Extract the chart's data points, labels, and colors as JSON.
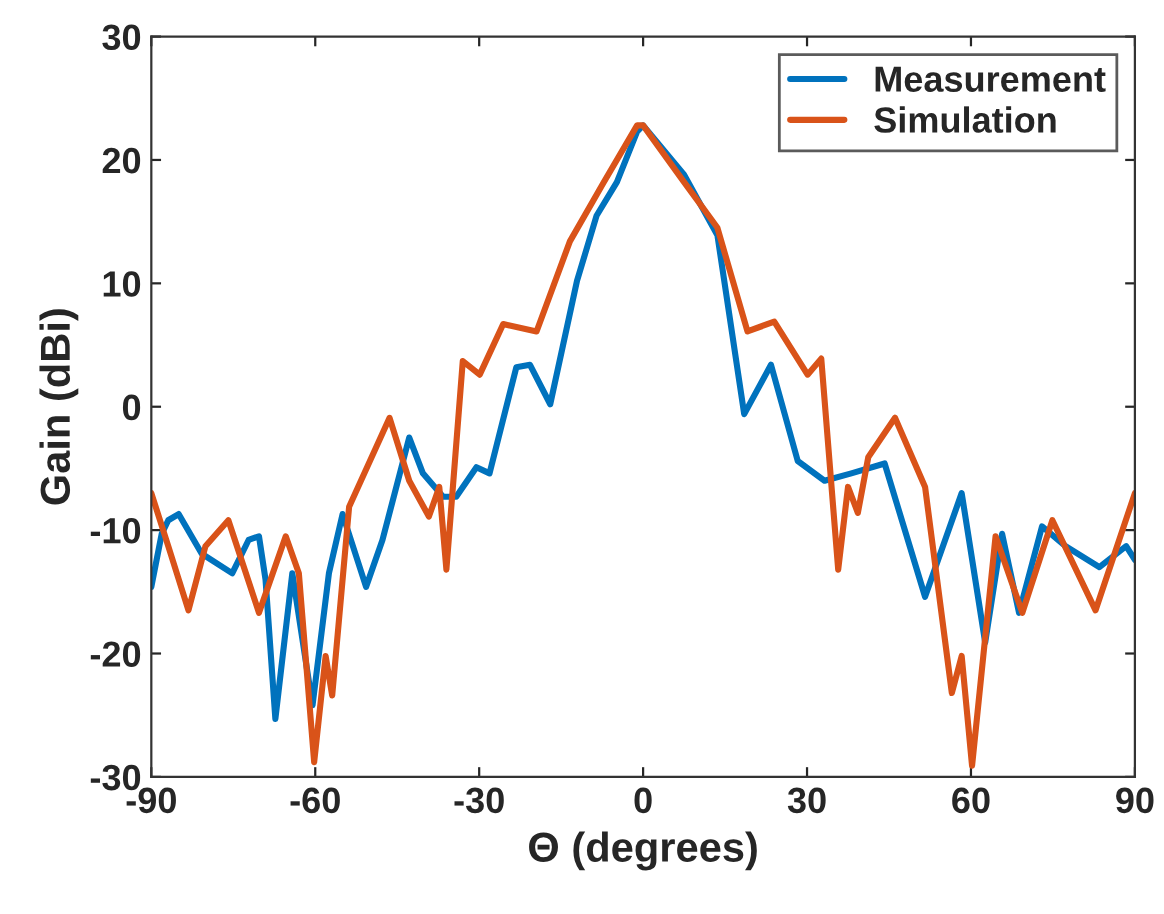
{
  "chart_data": {
    "type": "line",
    "xlabel": "Θ (degrees)",
    "ylabel": "Gain (dBi)",
    "xlim": [
      -90,
      90
    ],
    "xticks": [
      -90,
      -60,
      -30,
      0,
      30,
      60,
      90
    ],
    "ylim": [
      -30,
      30
    ],
    "yticks": [
      -30,
      -20,
      -10,
      0,
      10,
      20,
      30
    ],
    "grid": false,
    "legend": "top right",
    "line_style": "solid",
    "marker": "none",
    "series": [
      {
        "name": "Measurement",
        "color": "#0072bd",
        "x": [
          -90,
          -88.1,
          -86.9,
          -85,
          -80.8,
          -75.2,
          -72.2,
          -70.3,
          -69.1,
          -67.3,
          -64.2,
          -60.5,
          -57.5,
          -55,
          -50.7,
          -47.7,
          -42.8,
          -40.3,
          -36.6,
          -34.2,
          -30.5,
          -28.1,
          -23.2,
          -20.7,
          -17,
          -12.1,
          -8.5,
          -4.8,
          -1.1,
          0,
          7.5,
          13.6,
          18.5,
          23.4,
          28.3,
          33.2,
          38.1,
          44.2,
          51.6,
          58.3,
          62.6,
          65.7,
          68.8,
          73,
          77.3,
          83.5,
          88.4,
          90
        ],
        "values": [
          -14.6,
          -10.3,
          -9.2,
          -8.7,
          -11.9,
          -13.5,
          -10.8,
          -10.5,
          -14,
          -25.3,
          -13.5,
          -24.2,
          -13.5,
          -8.7,
          -14.6,
          -10.8,
          -2.5,
          -5.4,
          -7.3,
          -7.3,
          -4.9,
          -5.4,
          3.2,
          3.4,
          0.2,
          10.2,
          15.5,
          18.2,
          22.3,
          22.8,
          18.8,
          13.9,
          -0.6,
          3.4,
          -4.4,
          -6,
          -5.4,
          -4.6,
          -15.4,
          -7,
          -19.1,
          -10.3,
          -16.7,
          -9.7,
          -11.3,
          -13,
          -11.3,
          -12.4
        ]
      },
      {
        "name": "Simulation",
        "color": "#d95319",
        "x": [
          -90,
          -86.9,
          -83.2,
          -80.1,
          -75.9,
          -70.3,
          -65.4,
          -63,
          -60.2,
          -58.1,
          -56.9,
          -53.8,
          -46.4,
          -42.8,
          -39.2,
          -37.3,
          -36,
          -33,
          -29.9,
          -25.6,
          -19.5,
          -13.4,
          -7.2,
          -1.1,
          0,
          7.5,
          13.6,
          19.1,
          24,
          30.1,
          32.6,
          35.7,
          37.5,
          39.3,
          41.2,
          46.1,
          51.6,
          56.5,
          58.3,
          60.2,
          64.5,
          69.4,
          74.9,
          82.8,
          90
        ],
        "values": [
          -7,
          -11.3,
          -16.5,
          -11.3,
          -9.2,
          -16.7,
          -10.5,
          -13.5,
          -28.8,
          -20.2,
          -23.4,
          -8.1,
          -0.9,
          -6,
          -8.9,
          -6.5,
          -13.2,
          3.7,
          2.6,
          6.7,
          6.1,
          13.4,
          18.2,
          22.8,
          22.8,
          18.2,
          14.5,
          6.1,
          6.9,
          2.6,
          3.9,
          -13.2,
          -6.5,
          -8.6,
          -4.1,
          -0.9,
          -6.5,
          -23.2,
          -20.2,
          -29.1,
          -10.5,
          -16.7,
          -9.2,
          -16.5,
          -7
        ]
      }
    ]
  }
}
